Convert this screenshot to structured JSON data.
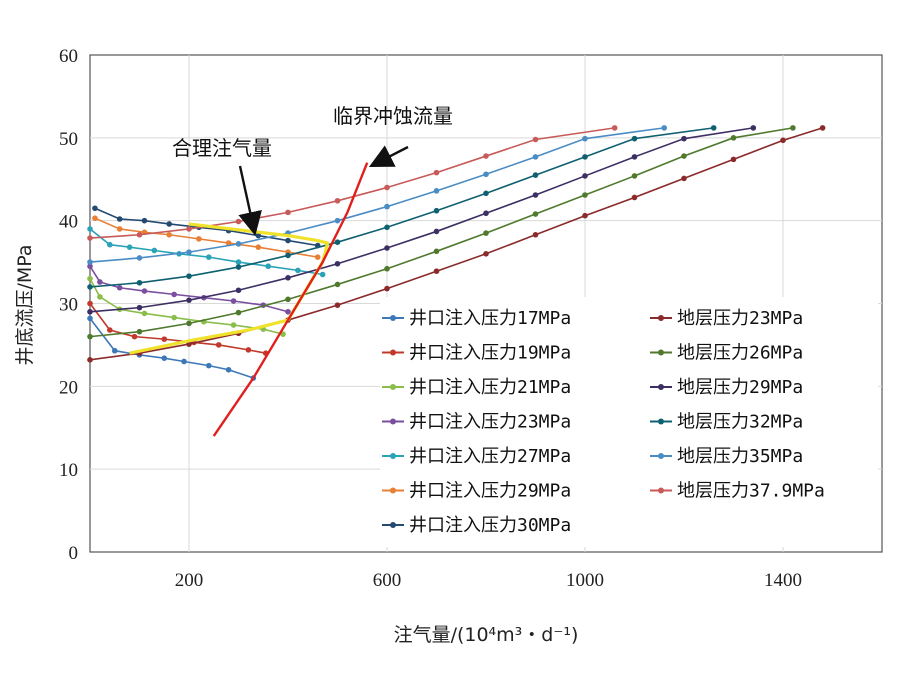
{
  "chart_data": {
    "type": "line",
    "xlabel": "注气量/(10⁴m³・d⁻¹)",
    "ylabel": "井底流压/MPa",
    "xlim": [
      0,
      1600
    ],
    "ylim": [
      0,
      60
    ],
    "xticks": [
      "200",
      "600",
      "1000",
      "1400"
    ],
    "xtick_values": [
      200,
      600,
      1000,
      1400
    ],
    "yticks": [
      "0",
      "10",
      "20",
      "30",
      "40",
      "50",
      "60"
    ],
    "ytick_values": [
      0,
      10,
      20,
      30,
      40,
      50,
      60
    ],
    "grid": true,
    "legend_position": "bottom-right",
    "series": [
      {
        "name": "井口注入压力17MPa",
        "color": "#3d78b8",
        "group": "inj",
        "x": [
          0,
          50,
          100,
          150,
          190,
          240,
          280,
          330
        ],
        "y": [
          28.2,
          24.3,
          23.8,
          23.4,
          23.0,
          22.5,
          22.0,
          21.0
        ]
      },
      {
        "name": "井口注入压力19MPa",
        "color": "#c0392b",
        "group": "inj",
        "x": [
          0,
          40,
          90,
          150,
          210,
          260,
          320,
          355
        ],
        "y": [
          30.0,
          26.8,
          26.0,
          25.7,
          25.3,
          25.0,
          24.4,
          24.0
        ]
      },
      {
        "name": "井口注入压力21MPa",
        "color": "#8bbd4a",
        "group": "inj",
        "x": [
          0,
          20,
          60,
          110,
          170,
          230,
          290,
          350,
          390
        ],
        "y": [
          33.0,
          30.8,
          29.3,
          28.8,
          28.3,
          27.8,
          27.4,
          26.9,
          26.3
        ]
      },
      {
        "name": "井口注入压力23MPa",
        "color": "#7a4fa0",
        "group": "inj",
        "x": [
          0,
          20,
          60,
          110,
          170,
          230,
          290,
          350,
          400
        ],
        "y": [
          34.5,
          32.6,
          31.9,
          31.5,
          31.1,
          30.7,
          30.3,
          29.8,
          29.0
        ]
      },
      {
        "name": "井口注入压力27MPa",
        "color": "#2aa3b8",
        "group": "inj",
        "x": [
          0,
          40,
          80,
          130,
          180,
          240,
          300,
          360,
          420,
          470
        ],
        "y": [
          39.0,
          37.1,
          36.8,
          36.4,
          36.0,
          35.6,
          35.0,
          34.5,
          34.0,
          33.5
        ]
      },
      {
        "name": "井口注入压力29MPa",
        "color": "#e77f35",
        "group": "inj",
        "x": [
          10,
          60,
          110,
          160,
          220,
          280,
          340,
          400,
          460
        ],
        "y": [
          40.3,
          39.0,
          38.6,
          38.3,
          37.8,
          37.3,
          36.8,
          36.2,
          35.6
        ]
      },
      {
        "name": "井口注入压力30MPa",
        "color": "#244a72",
        "group": "inj",
        "x": [
          10,
          60,
          110,
          160,
          220,
          280,
          340,
          400,
          460
        ],
        "y": [
          41.5,
          40.2,
          40.0,
          39.6,
          39.2,
          38.8,
          38.2,
          37.6,
          37.0
        ]
      },
      {
        "name": "地层压力23MPa",
        "color": "#8b2a2a",
        "group": "res",
        "x": [
          0,
          100,
          200,
          300,
          400,
          500,
          600,
          700,
          800,
          900,
          1000,
          1100,
          1200,
          1300,
          1400,
          1480
        ],
        "y": [
          23.2,
          24.0,
          25.1,
          26.4,
          28.0,
          29.8,
          31.8,
          33.9,
          36.0,
          38.3,
          40.6,
          42.8,
          45.1,
          47.4,
          49.7,
          51.2
        ]
      },
      {
        "name": "地层压力26MPa",
        "color": "#4f7a2e",
        "group": "res",
        "x": [
          0,
          100,
          200,
          300,
          400,
          500,
          600,
          700,
          800,
          900,
          1000,
          1100,
          1200,
          1300,
          1420
        ],
        "y": [
          26.0,
          26.6,
          27.6,
          28.9,
          30.5,
          32.3,
          34.2,
          36.3,
          38.5,
          40.8,
          43.1,
          45.4,
          47.8,
          50.0,
          51.2
        ]
      },
      {
        "name": "地层压力29MPa",
        "color": "#3d2f64",
        "group": "res",
        "x": [
          0,
          100,
          200,
          300,
          400,
          500,
          600,
          700,
          800,
          900,
          1000,
          1100,
          1200,
          1340
        ],
        "y": [
          29.0,
          29.5,
          30.4,
          31.6,
          33.1,
          34.8,
          36.7,
          38.7,
          40.9,
          43.1,
          45.4,
          47.7,
          49.9,
          51.2
        ]
      },
      {
        "name": "地层压力32MPa",
        "color": "#0f6070",
        "group": "res",
        "x": [
          0,
          100,
          200,
          300,
          400,
          500,
          600,
          700,
          800,
          900,
          1000,
          1100,
          1260
        ],
        "y": [
          32.0,
          32.5,
          33.3,
          34.4,
          35.8,
          37.4,
          39.2,
          41.2,
          43.3,
          45.5,
          47.7,
          49.9,
          51.2
        ]
      },
      {
        "name": "地层压力35MPa",
        "color": "#4a8cc4",
        "group": "res",
        "x": [
          0,
          100,
          200,
          300,
          400,
          500,
          600,
          700,
          800,
          900,
          1000,
          1160
        ],
        "y": [
          35.0,
          35.5,
          36.2,
          37.2,
          38.5,
          40.0,
          41.7,
          43.6,
          45.6,
          47.7,
          49.9,
          51.2
        ]
      },
      {
        "name": "地层压力37.9MPa",
        "color": "#c85a5a",
        "group": "res",
        "x": [
          0,
          100,
          200,
          300,
          400,
          500,
          600,
          700,
          800,
          900,
          1060
        ],
        "y": [
          37.9,
          38.3,
          39.0,
          39.9,
          41.0,
          42.4,
          44.0,
          45.8,
          47.8,
          49.8,
          51.2
        ]
      }
    ],
    "critical_erosion_line": {
      "color": "#e0201e",
      "x": [
        250,
        330,
        400,
        470,
        520,
        560
      ],
      "y": [
        14.0,
        21.0,
        28.0,
        35.0,
        41.0,
        47.0
      ]
    },
    "reasonable_injection_line": {
      "color": "#f0e22a",
      "x": [
        80,
        200,
        320,
        400,
        430,
        470,
        480,
        460,
        400,
        300,
        200
      ],
      "y": [
        24.0,
        25.5,
        26.8,
        28.0,
        31.0,
        35.0,
        37.3,
        37.6,
        38.2,
        38.9,
        39.6
      ]
    },
    "annotations": {
      "critical": "临界冲蚀流量",
      "reasonable": "合理注气量"
    },
    "annotation_targets": {
      "critical_tip": {
        "x": 560,
        "y": 46.5
      },
      "reasonable_tip": {
        "x": 340,
        "y": 38.0
      }
    }
  }
}
